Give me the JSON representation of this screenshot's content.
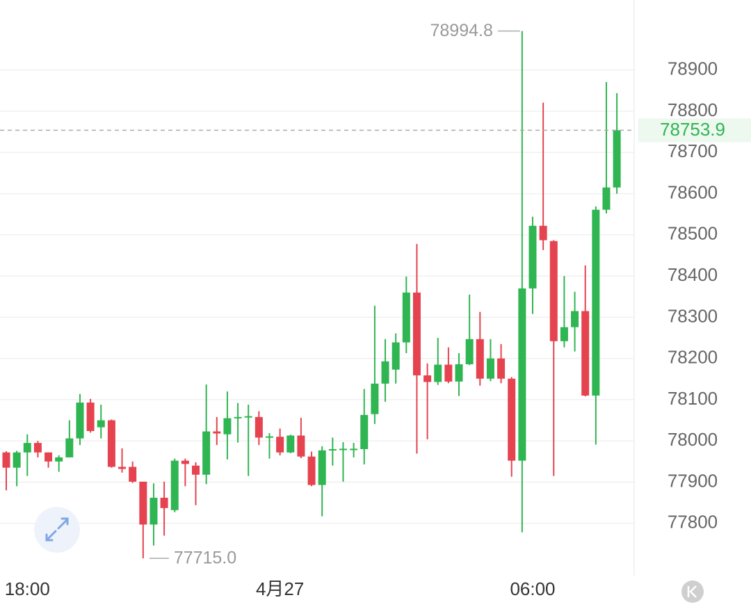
{
  "chart_data": {
    "type": "candlestick",
    "categories": [
      null,
      null,
      "18:00",
      null,
      null,
      null,
      null,
      null,
      null,
      null,
      null,
      null,
      null,
      null,
      null,
      null,
      null,
      null,
      null,
      null,
      null,
      null,
      null,
      null,
      null,
      null,
      "4月27",
      null,
      null,
      null,
      null,
      null,
      null,
      null,
      null,
      null,
      null,
      null,
      null,
      null,
      null,
      null,
      null,
      null,
      null,
      null,
      null,
      null,
      null,
      null,
      "06:00",
      null,
      null,
      null,
      null,
      null,
      null,
      null,
      null
    ],
    "open": [
      77972,
      77935,
      77972,
      77995,
      77972,
      77950,
      77960,
      78006,
      78093,
      78033,
      78050,
      77937,
      77937,
      77901,
      77797,
      77862,
      77832,
      77952,
      77940,
      77918,
      78023,
      78016,
      78055,
      78057,
      78058,
      78008,
      78010,
      77972,
      78013,
      77962,
      77893,
      77978,
      77978,
      77980,
      77980,
      78065,
      78139,
      78173,
      78239,
      78360,
      78159,
      78143,
      78185,
      78144,
      78186,
      78247,
      78151,
      78200,
      78151,
      77952,
      78370,
      78522,
      78485,
      78242,
      78276,
      78315,
      78110,
      78561,
      78615
    ],
    "high": [
      77975,
      77976,
      78016,
      78000,
      77972,
      77965,
      78050,
      78114,
      78102,
      78088,
      78052,
      77982,
      77950,
      77901,
      77897,
      77901,
      77957,
      77957,
      77948,
      78137,
      78058,
      78120,
      78092,
      78088,
      78072,
      78019,
      78030,
      78015,
      78056,
      77974,
      77987,
      78008,
      77997,
      77995,
      78126,
      78328,
      78247,
      78261,
      78399,
      78478,
      78188,
      78250,
      78227,
      78213,
      78355,
      78313,
      78247,
      78235,
      78155,
      78994.8,
      78544,
      78821,
      78487,
      78400,
      78362,
      78426,
      78569,
      78871,
      78844
    ],
    "low": [
      77880,
      77890,
      77915,
      77960,
      77935,
      77925,
      77960,
      77990,
      78020,
      78006,
      77935,
      77923,
      77898,
      77715,
      77746,
      77770,
      77827,
      77890,
      77844,
      77895,
      77990,
      77955,
      77996,
      77915,
      77990,
      77957,
      77965,
      77970,
      77958,
      77890,
      77817,
      77940,
      77901,
      77960,
      77943,
      78041,
      78095,
      78139,
      78213,
      77969,
      78004,
      78136,
      78140,
      78109,
      78184,
      78134,
      78145,
      78140,
      77913,
      77778,
      78308,
      78463,
      77915,
      78227,
      78217,
      78108,
      77991,
      78552,
      78600
    ],
    "close": [
      77935,
      77972,
      77995,
      77972,
      77950,
      77960,
      78006,
      78093,
      78024,
      78050,
      77937,
      77932,
      77901,
      77797,
      77862,
      77837,
      77952,
      77944,
      77918,
      78023,
      78018,
      78055,
      78058,
      78060,
      78008,
      78011,
      77972,
      78013,
      77962,
      77893,
      77977,
      77980,
      77981,
      77981,
      78063,
      78139,
      78193,
      78239,
      78360,
      78159,
      78143,
      78185,
      78144,
      78186,
      78247,
      78151,
      78200,
      78151,
      77952,
      78370,
      78522,
      78487,
      78242,
      78276,
      78315,
      78110,
      78561,
      78615,
      78753.9
    ],
    "up_color": "#2fb551",
    "down_color": "#e5434f",
    "high_label": "78994.8",
    "low_label": "77715.0",
    "ylim": [
      77673,
      79070
    ],
    "yticks": [
      77800,
      77900,
      78000,
      78100,
      78200,
      78300,
      78400,
      78500,
      78600,
      78700,
      78800,
      78900
    ],
    "grid": true
  }
}
